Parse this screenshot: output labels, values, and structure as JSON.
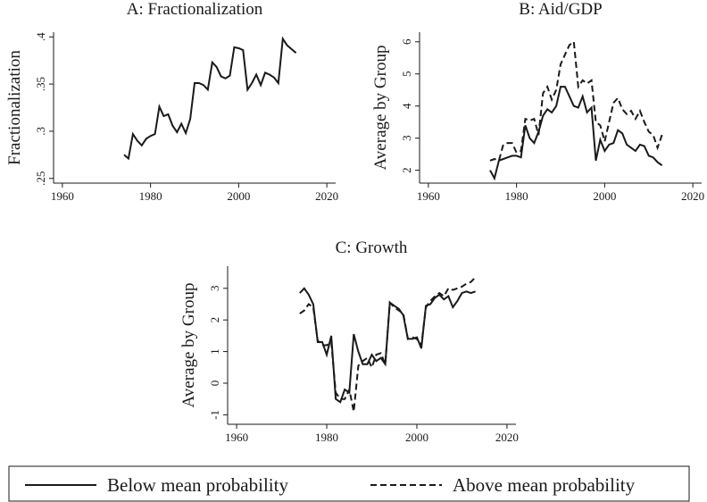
{
  "chart_data": [
    {
      "type": "line",
      "title": "A: Fractionalization",
      "ylabel": "Fractionalization",
      "x": [
        1974,
        1975,
        1976,
        1977,
        1978,
        1979,
        1980,
        1981,
        1982,
        1983,
        1984,
        1985,
        1986,
        1987,
        1988,
        1989,
        1990,
        1991,
        1992,
        1993,
        1994,
        1995,
        1996,
        1997,
        1998,
        1999,
        2000,
        2001,
        2002,
        2003,
        2004,
        2005,
        2006,
        2007,
        2008,
        2009,
        2010,
        2011,
        2012,
        2013
      ],
      "series": [
        {
          "color": "#1a1a1a",
          "dash": false,
          "values": [
            0.275,
            0.271,
            0.297,
            0.29,
            0.285,
            0.292,
            0.295,
            0.297,
            0.326,
            0.316,
            0.318,
            0.306,
            0.299,
            0.308,
            0.298,
            0.313,
            0.351,
            0.351,
            0.349,
            0.344,
            0.373,
            0.368,
            0.358,
            0.356,
            0.359,
            0.389,
            0.388,
            0.386,
            0.344,
            0.351,
            0.36,
            0.349,
            0.362,
            0.36,
            0.357,
            0.351,
            0.398,
            0.391,
            0.387,
            0.383
          ]
        }
      ],
      "xlim": [
        1958,
        2022
      ],
      "xticks": [
        1960,
        1980,
        2000,
        2020
      ],
      "ylim": [
        0.245,
        0.405
      ],
      "yticks": [
        {
          "value": 0.25,
          "label": ".25"
        },
        {
          "value": 0.3,
          "label": ".3"
        },
        {
          "value": 0.35,
          "label": ".35"
        },
        {
          "value": 0.4,
          "label": ".4"
        }
      ]
    },
    {
      "type": "line",
      "title": "B: Aid/GDP",
      "ylabel": "Average by Group",
      "x": [
        1974,
        1975,
        1976,
        1977,
        1978,
        1979,
        1980,
        1981,
        1982,
        1983,
        1984,
        1985,
        1986,
        1987,
        1988,
        1989,
        1990,
        1991,
        1992,
        1993,
        1994,
        1995,
        1996,
        1997,
        1998,
        1999,
        2000,
        2001,
        2002,
        2003,
        2004,
        2005,
        2006,
        2007,
        2008,
        2009,
        2010,
        2011,
        2012,
        2013
      ],
      "series": [
        {
          "name": "Below mean probability",
          "color": "#1a1a1a",
          "dash": false,
          "values": [
            2.0,
            1.75,
            2.3,
            2.35,
            2.4,
            2.45,
            2.45,
            2.4,
            3.4,
            3.0,
            2.85,
            3.2,
            3.7,
            3.9,
            3.8,
            4.0,
            4.6,
            4.6,
            4.3,
            4.0,
            3.95,
            4.3,
            3.8,
            3.95,
            2.3,
            2.95,
            2.6,
            2.8,
            2.85,
            3.25,
            3.15,
            2.8,
            2.7,
            2.6,
            2.8,
            2.75,
            2.45,
            2.4,
            2.25,
            2.15
          ]
        },
        {
          "name": "Above mean probability",
          "color": "#1a1a1a",
          "dash": true,
          "values": [
            2.3,
            2.35,
            2.3,
            2.8,
            2.85,
            2.85,
            2.55,
            2.6,
            3.6,
            3.55,
            3.6,
            3.1,
            4.4,
            4.6,
            4.2,
            4.5,
            5.3,
            5.6,
            5.9,
            6.0,
            4.6,
            4.8,
            4.7,
            4.8,
            3.5,
            3.4,
            2.9,
            3.5,
            4.1,
            4.25,
            3.9,
            3.75,
            3.85,
            3.6,
            3.85,
            3.5,
            3.2,
            3.1,
            2.7,
            3.1
          ]
        }
      ],
      "xlim": [
        1958,
        2022
      ],
      "xticks": [
        1960,
        1980,
        2000,
        2020
      ],
      "ylim": [
        1.6,
        6.3
      ],
      "yticks": [
        2,
        3,
        4,
        5,
        6
      ]
    },
    {
      "type": "line",
      "title": "C: Growth",
      "ylabel": "Average by Group",
      "x": [
        1974,
        1975,
        1976,
        1977,
        1978,
        1979,
        1980,
        1981,
        1982,
        1983,
        1984,
        1985,
        1986,
        1987,
        1988,
        1989,
        1990,
        1991,
        1992,
        1993,
        1994,
        1995,
        1996,
        1997,
        1998,
        1999,
        2000,
        2001,
        2002,
        2003,
        2004,
        2005,
        2006,
        2007,
        2008,
        2009,
        2010,
        2011,
        2012,
        2013
      ],
      "series": [
        {
          "color": "#1a1a1a",
          "dash": false,
          "values": [
            2.85,
            3.0,
            2.8,
            2.5,
            1.3,
            1.3,
            0.9,
            1.5,
            -0.5,
            -0.6,
            -0.2,
            -0.3,
            1.55,
            1.0,
            0.6,
            0.6,
            0.9,
            0.7,
            0.8,
            0.6,
            2.55,
            2.45,
            2.35,
            2.15,
            1.4,
            1.4,
            1.45,
            1.1,
            2.45,
            2.5,
            2.7,
            2.8,
            2.65,
            2.75,
            2.4,
            2.6,
            2.85,
            2.9,
            2.85,
            2.9
          ]
        },
        {
          "color": "#1a1a1a",
          "dash": true,
          "values": [
            2.2,
            2.3,
            2.5,
            2.4,
            1.35,
            1.2,
            1.2,
            1.3,
            -0.3,
            -0.5,
            -0.5,
            -0.2,
            -0.9,
            0.55,
            0.7,
            0.8,
            0.5,
            0.9,
            0.95,
            0.6,
            2.55,
            2.4,
            2.3,
            2.2,
            1.4,
            1.45,
            1.4,
            1.2,
            2.4,
            2.6,
            2.75,
            2.85,
            2.75,
            3.0,
            2.95,
            3.0,
            3.05,
            3.15,
            3.2,
            3.35
          ]
        }
      ],
      "xlim": [
        1958,
        2022
      ],
      "xticks": [
        1960,
        1980,
        2000,
        2020
      ],
      "ylim": [
        -1.3,
        3.7
      ],
      "yticks": [
        -1,
        0,
        1,
        2,
        3
      ]
    }
  ]
}
